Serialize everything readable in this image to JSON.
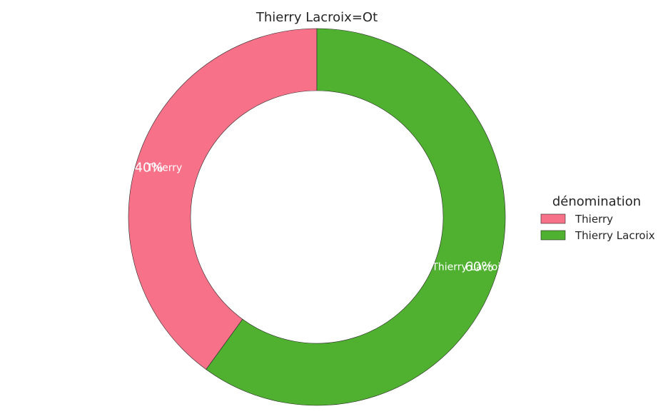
{
  "chart_data": {
    "type": "pie",
    "donut": true,
    "title": "Thierry Lacroix=Ot",
    "start_angle_deg": 90,
    "direction": "counterclockwise",
    "slices": [
      {
        "label": "Thierry",
        "value": 40,
        "pct_label": "40%",
        "color": "#f77189"
      },
      {
        "label": "Thierry Lacroix",
        "value": 60,
        "pct_label": "60%",
        "color": "#50b131"
      }
    ],
    "legend": {
      "title": "dénomination",
      "position": "right",
      "entries": [
        "Thierry",
        "Thierry Lacroix"
      ]
    }
  }
}
